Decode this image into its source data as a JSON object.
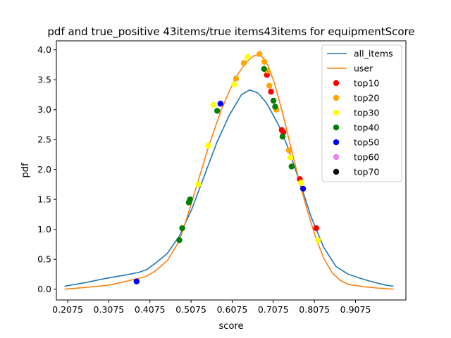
{
  "chart_data": {
    "type": "line",
    "title": "pdf and true_positive 43items/true items43items for equipmentScore",
    "xlabel": "score",
    "ylabel": "pdf",
    "xlim": [
      0.18,
      1.03
    ],
    "ylim": [
      -0.18,
      4.15
    ],
    "xticks": [
      0.2075,
      0.3075,
      0.4075,
      0.5075,
      0.6075,
      0.7075,
      0.8075,
      0.9075
    ],
    "xtick_labels": [
      "0.2075",
      "0.3075",
      "0.4075",
      "0.5075",
      "0.6075",
      "0.7075",
      "0.8075",
      "0.9075"
    ],
    "yticks": [
      0.0,
      0.5,
      1.0,
      1.5,
      2.0,
      2.5,
      3.0,
      3.5,
      4.0
    ],
    "ytick_labels": [
      "0.0",
      "0.5",
      "1.0",
      "1.5",
      "2.0",
      "2.5",
      "3.0",
      "3.5",
      "4.0"
    ],
    "legend_position": "top-right",
    "series": [
      {
        "name": "all_items",
        "kind": "line",
        "color": "#1f77b4",
        "x": [
          0.2,
          0.25,
          0.3,
          0.35,
          0.38,
          0.4,
          0.42,
          0.45,
          0.48,
          0.51,
          0.54,
          0.57,
          0.6,
          0.63,
          0.65,
          0.67,
          0.69,
          0.7,
          0.72,
          0.74,
          0.76,
          0.78,
          0.8,
          0.83,
          0.86,
          0.89,
          0.92,
          0.95,
          0.98,
          1.0
        ],
        "y": [
          0.05,
          0.11,
          0.18,
          0.24,
          0.28,
          0.33,
          0.43,
          0.6,
          0.9,
          1.35,
          1.9,
          2.45,
          2.9,
          3.25,
          3.33,
          3.28,
          3.12,
          3.0,
          2.75,
          2.42,
          2.03,
          1.62,
          1.2,
          0.7,
          0.38,
          0.25,
          0.18,
          0.12,
          0.07,
          0.05
        ]
      },
      {
        "name": "user",
        "kind": "line",
        "color": "#ff7f0e",
        "x": [
          0.2,
          0.25,
          0.3,
          0.33,
          0.36,
          0.38,
          0.4,
          0.42,
          0.45,
          0.48,
          0.5,
          0.52,
          0.55,
          0.58,
          0.6,
          0.62,
          0.64,
          0.66,
          0.675,
          0.685,
          0.695,
          0.71,
          0.73,
          0.75,
          0.77,
          0.79,
          0.81,
          0.83,
          0.85,
          0.87,
          0.89,
          0.91,
          0.93,
          0.96,
          1.0
        ],
        "y": [
          0.0,
          0.03,
          0.06,
          0.1,
          0.15,
          0.18,
          0.22,
          0.3,
          0.48,
          0.82,
          1.25,
          1.7,
          2.38,
          2.98,
          3.3,
          3.58,
          3.78,
          3.9,
          3.91,
          3.85,
          3.73,
          3.45,
          2.95,
          2.38,
          1.82,
          1.32,
          0.88,
          0.52,
          0.28,
          0.15,
          0.08,
          0.06,
          0.04,
          0.02,
          0.0
        ]
      },
      {
        "name": "top10",
        "kind": "scatter",
        "color": "#ff0000",
        "x": [
          0.692,
          0.702,
          0.728,
          0.732,
          0.746,
          0.772,
          0.812
        ],
        "y": [
          3.58,
          3.3,
          2.66,
          2.62,
          2.32,
          1.84,
          1.02
        ]
      },
      {
        "name": "top20",
        "kind": "scatter",
        "color": "#ffa500",
        "x": [
          0.617,
          0.636,
          0.674,
          0.686,
          0.693,
          0.698,
          0.715,
          0.746
        ],
        "y": [
          3.52,
          3.78,
          3.93,
          3.8,
          3.65,
          3.4,
          3.0,
          2.32
        ]
      },
      {
        "name": "top30",
        "kind": "scatter",
        "color": "#ffff00",
        "x": [
          0.525,
          0.549,
          0.562,
          0.612,
          0.645,
          0.749,
          0.775,
          0.816
        ],
        "y": [
          1.75,
          2.4,
          3.08,
          3.42,
          3.88,
          2.2,
          1.78,
          0.82
        ]
      },
      {
        "name": "top40",
        "kind": "scatter",
        "color": "#008000",
        "x": [
          0.479,
          0.486,
          0.502,
          0.505,
          0.571,
          0.685,
          0.708,
          0.712,
          0.73,
          0.752
        ],
        "y": [
          0.82,
          1.02,
          1.45,
          1.5,
          2.98,
          3.68,
          3.15,
          3.05,
          2.55,
          2.05
        ]
      },
      {
        "name": "top50",
        "kind": "scatter",
        "color": "#0000ff",
        "x": [
          0.375,
          0.579,
          0.78
        ],
        "y": [
          0.13,
          3.1,
          1.68
        ]
      },
      {
        "name": "top60",
        "kind": "scatter",
        "color": "#ee82ee",
        "x": [],
        "y": []
      },
      {
        "name": "top70",
        "kind": "scatter",
        "color": "#000000",
        "x": [],
        "y": []
      }
    ]
  }
}
